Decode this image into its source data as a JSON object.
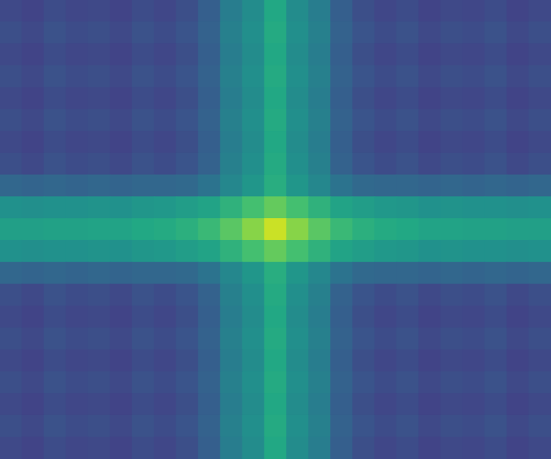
{
  "chart_data": {
    "type": "heatmap",
    "tick_labels": false,
    "clim": [
      0,
      1
    ],
    "cells": [
      [
        0.22,
        0.2,
        0.23,
        0.21,
        0.22,
        0.2,
        0.23,
        0.21,
        0.24,
        0.3,
        0.42,
        0.48,
        0.6,
        0.48,
        0.42,
        0.3,
        0.24,
        0.21,
        0.23,
        0.2,
        0.22,
        0.21,
        0.23,
        0.2,
        0.22
      ],
      [
        0.24,
        0.22,
        0.25,
        0.23,
        0.24,
        0.22,
        0.25,
        0.23,
        0.26,
        0.31,
        0.43,
        0.49,
        0.61,
        0.49,
        0.43,
        0.31,
        0.26,
        0.23,
        0.25,
        0.22,
        0.24,
        0.23,
        0.25,
        0.22,
        0.24
      ],
      [
        0.22,
        0.2,
        0.23,
        0.21,
        0.22,
        0.2,
        0.23,
        0.21,
        0.24,
        0.3,
        0.42,
        0.48,
        0.6,
        0.48,
        0.42,
        0.3,
        0.24,
        0.21,
        0.23,
        0.2,
        0.22,
        0.21,
        0.23,
        0.2,
        0.22
      ],
      [
        0.24,
        0.22,
        0.25,
        0.23,
        0.24,
        0.22,
        0.25,
        0.23,
        0.26,
        0.31,
        0.43,
        0.49,
        0.61,
        0.49,
        0.43,
        0.31,
        0.26,
        0.23,
        0.25,
        0.22,
        0.24,
        0.23,
        0.25,
        0.22,
        0.24
      ],
      [
        0.22,
        0.2,
        0.23,
        0.21,
        0.22,
        0.2,
        0.23,
        0.21,
        0.24,
        0.3,
        0.42,
        0.48,
        0.6,
        0.48,
        0.42,
        0.3,
        0.24,
        0.21,
        0.23,
        0.2,
        0.22,
        0.21,
        0.23,
        0.2,
        0.22
      ],
      [
        0.24,
        0.22,
        0.25,
        0.23,
        0.24,
        0.22,
        0.25,
        0.23,
        0.26,
        0.31,
        0.43,
        0.49,
        0.61,
        0.49,
        0.43,
        0.31,
        0.26,
        0.23,
        0.25,
        0.22,
        0.24,
        0.23,
        0.25,
        0.22,
        0.24
      ],
      [
        0.22,
        0.2,
        0.23,
        0.21,
        0.22,
        0.2,
        0.23,
        0.21,
        0.24,
        0.3,
        0.42,
        0.48,
        0.6,
        0.48,
        0.42,
        0.3,
        0.24,
        0.21,
        0.23,
        0.2,
        0.22,
        0.21,
        0.23,
        0.2,
        0.22
      ],
      [
        0.24,
        0.22,
        0.25,
        0.23,
        0.24,
        0.22,
        0.25,
        0.23,
        0.26,
        0.31,
        0.43,
        0.49,
        0.61,
        0.49,
        0.43,
        0.31,
        0.26,
        0.23,
        0.25,
        0.22,
        0.24,
        0.23,
        0.25,
        0.22,
        0.24
      ],
      [
        0.33,
        0.32,
        0.33,
        0.32,
        0.33,
        0.32,
        0.33,
        0.33,
        0.34,
        0.38,
        0.46,
        0.52,
        0.62,
        0.52,
        0.46,
        0.38,
        0.34,
        0.33,
        0.33,
        0.32,
        0.33,
        0.32,
        0.33,
        0.32,
        0.33
      ],
      [
        0.5,
        0.49,
        0.5,
        0.5,
        0.51,
        0.5,
        0.52,
        0.53,
        0.55,
        0.58,
        0.64,
        0.7,
        0.76,
        0.7,
        0.64,
        0.58,
        0.55,
        0.53,
        0.52,
        0.5,
        0.51,
        0.5,
        0.5,
        0.49,
        0.5
      ],
      [
        0.56,
        0.56,
        0.57,
        0.57,
        0.58,
        0.58,
        0.6,
        0.61,
        0.63,
        0.67,
        0.74,
        0.82,
        0.92,
        0.82,
        0.74,
        0.67,
        0.63,
        0.61,
        0.6,
        0.58,
        0.58,
        0.57,
        0.57,
        0.56,
        0.56
      ],
      [
        0.5,
        0.49,
        0.5,
        0.5,
        0.51,
        0.5,
        0.52,
        0.53,
        0.55,
        0.58,
        0.64,
        0.7,
        0.76,
        0.7,
        0.64,
        0.58,
        0.55,
        0.53,
        0.52,
        0.5,
        0.51,
        0.5,
        0.5,
        0.49,
        0.5
      ],
      [
        0.33,
        0.32,
        0.33,
        0.32,
        0.33,
        0.32,
        0.33,
        0.33,
        0.34,
        0.38,
        0.46,
        0.52,
        0.62,
        0.52,
        0.46,
        0.38,
        0.34,
        0.33,
        0.33,
        0.32,
        0.33,
        0.32,
        0.33,
        0.32,
        0.33
      ],
      [
        0.24,
        0.22,
        0.25,
        0.23,
        0.24,
        0.22,
        0.25,
        0.23,
        0.26,
        0.31,
        0.43,
        0.49,
        0.61,
        0.49,
        0.43,
        0.31,
        0.26,
        0.23,
        0.25,
        0.22,
        0.24,
        0.23,
        0.25,
        0.22,
        0.24
      ],
      [
        0.22,
        0.2,
        0.23,
        0.21,
        0.22,
        0.2,
        0.23,
        0.21,
        0.24,
        0.3,
        0.42,
        0.48,
        0.6,
        0.48,
        0.42,
        0.3,
        0.24,
        0.21,
        0.23,
        0.2,
        0.22,
        0.21,
        0.23,
        0.2,
        0.22
      ],
      [
        0.24,
        0.22,
        0.25,
        0.23,
        0.24,
        0.22,
        0.25,
        0.23,
        0.26,
        0.31,
        0.43,
        0.49,
        0.61,
        0.49,
        0.43,
        0.31,
        0.26,
        0.23,
        0.25,
        0.22,
        0.24,
        0.23,
        0.25,
        0.22,
        0.24
      ],
      [
        0.22,
        0.2,
        0.23,
        0.21,
        0.22,
        0.2,
        0.23,
        0.21,
        0.24,
        0.3,
        0.42,
        0.48,
        0.6,
        0.48,
        0.42,
        0.3,
        0.24,
        0.21,
        0.23,
        0.2,
        0.22,
        0.21,
        0.23,
        0.2,
        0.22
      ],
      [
        0.24,
        0.22,
        0.25,
        0.23,
        0.24,
        0.22,
        0.25,
        0.23,
        0.26,
        0.31,
        0.43,
        0.49,
        0.61,
        0.49,
        0.43,
        0.31,
        0.26,
        0.23,
        0.25,
        0.22,
        0.24,
        0.23,
        0.25,
        0.22,
        0.24
      ],
      [
        0.22,
        0.2,
        0.23,
        0.21,
        0.22,
        0.2,
        0.23,
        0.21,
        0.24,
        0.3,
        0.42,
        0.48,
        0.6,
        0.48,
        0.42,
        0.3,
        0.24,
        0.21,
        0.23,
        0.2,
        0.22,
        0.21,
        0.23,
        0.2,
        0.22
      ],
      [
        0.24,
        0.22,
        0.25,
        0.23,
        0.24,
        0.22,
        0.25,
        0.23,
        0.26,
        0.31,
        0.43,
        0.49,
        0.61,
        0.49,
        0.43,
        0.31,
        0.26,
        0.23,
        0.25,
        0.22,
        0.24,
        0.23,
        0.25,
        0.22,
        0.24
      ],
      [
        0.22,
        0.2,
        0.23,
        0.21,
        0.22,
        0.2,
        0.23,
        0.21,
        0.24,
        0.3,
        0.42,
        0.48,
        0.6,
        0.48,
        0.42,
        0.3,
        0.24,
        0.21,
        0.23,
        0.2,
        0.22,
        0.21,
        0.23,
        0.2,
        0.22
      ]
    ]
  }
}
